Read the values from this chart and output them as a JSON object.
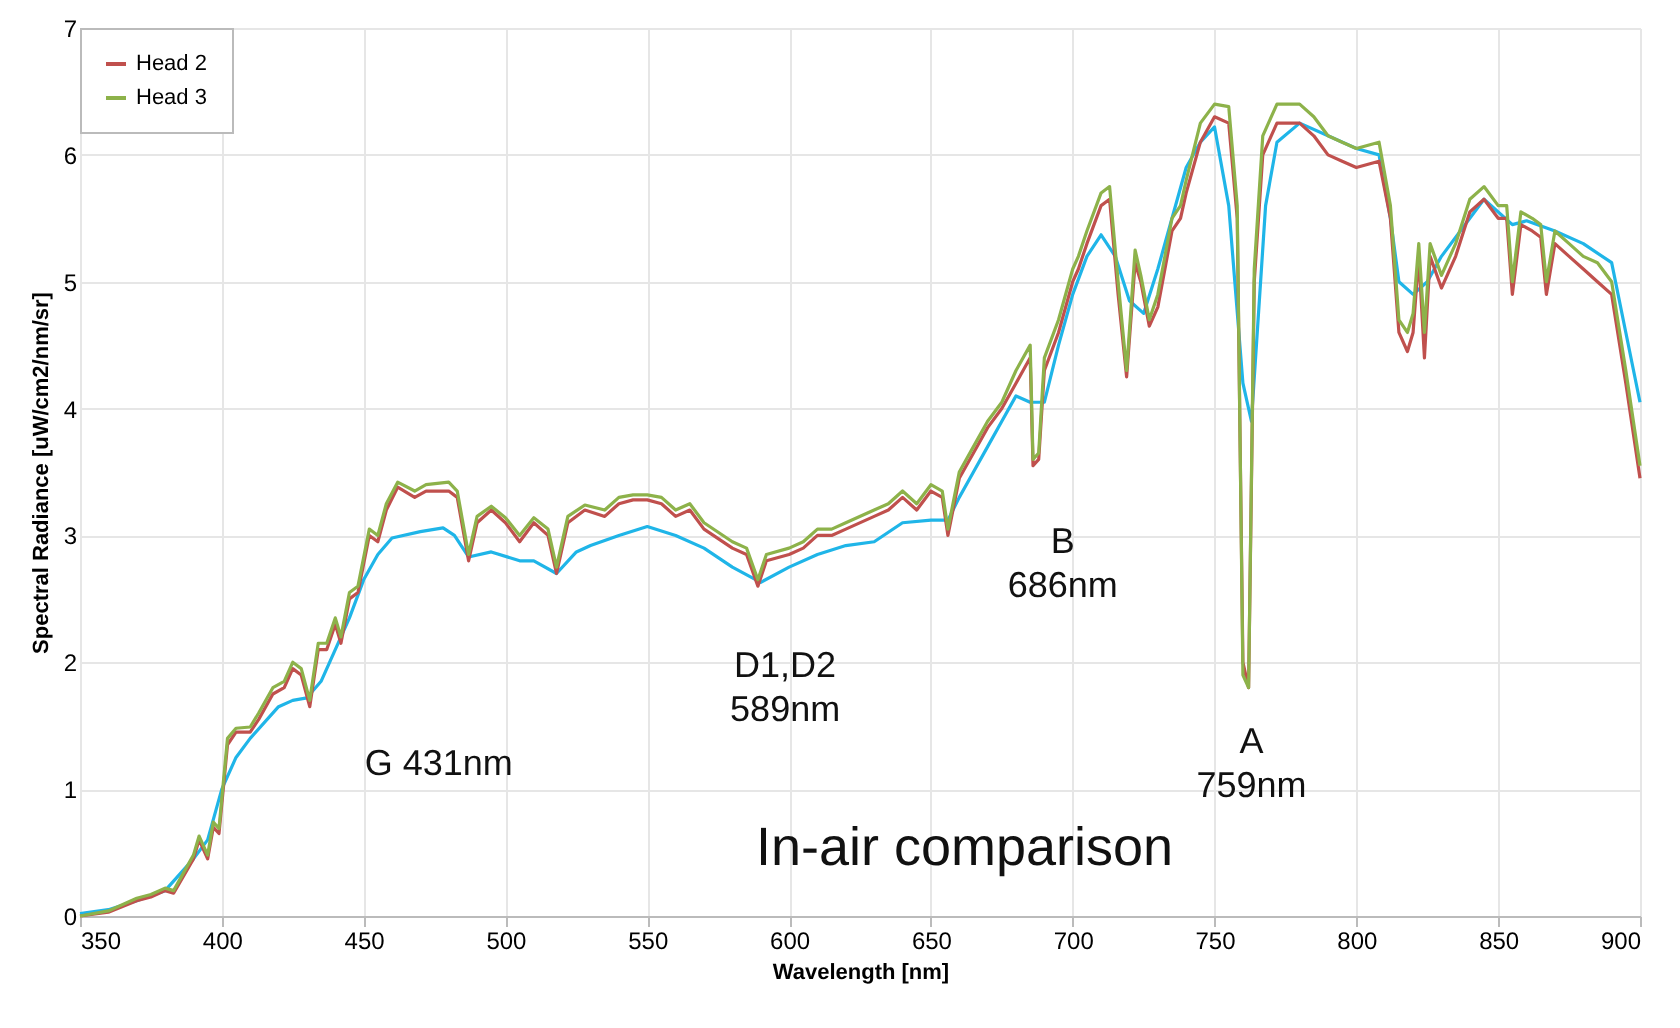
{
  "chart_data": {
    "type": "line",
    "xlabel": "Wavelength [nm]",
    "ylabel": "Spectral Radiance [uW/cm2/nm/sr]",
    "x": [
      350,
      360,
      370,
      375,
      380,
      383,
      390,
      392,
      395,
      397,
      399,
      402,
      405,
      410,
      413,
      418,
      422,
      425,
      428,
      431,
      434,
      437,
      440,
      442,
      445,
      448,
      452,
      455,
      458,
      462,
      468,
      472,
      480,
      483,
      487,
      490,
      495,
      500,
      505,
      510,
      515,
      518,
      522,
      528,
      535,
      540,
      545,
      550,
      555,
      560,
      565,
      570,
      580,
      585,
      589,
      592,
      600,
      605,
      610,
      615,
      620,
      630,
      635,
      640,
      645,
      650,
      654,
      656,
      660,
      665,
      670,
      675,
      680,
      685,
      686,
      688,
      690,
      695,
      700,
      702,
      705,
      710,
      713,
      716,
      719,
      722,
      724,
      727,
      730,
      735,
      738,
      740,
      745,
      750,
      755,
      758,
      760,
      762,
      764,
      767,
      772,
      780,
      785,
      790,
      795,
      800,
      808,
      812,
      815,
      818,
      820,
      822,
      824,
      826,
      830,
      835,
      840,
      845,
      850,
      853,
      855,
      858,
      862,
      865,
      867,
      870,
      875,
      880,
      885,
      890,
      895,
      900
    ],
    "series": [
      {
        "color": "#1fb5e8",
        "x": [
          350,
          360,
          370,
          380,
          390,
          395,
          400,
          405,
          410,
          420,
          425,
          430,
          435,
          440,
          445,
          450,
          455,
          460,
          470,
          478,
          482,
          487,
          495,
          505,
          510,
          518,
          525,
          530,
          540,
          550,
          560,
          570,
          580,
          590,
          600,
          610,
          620,
          630,
          640,
          650,
          656,
          660,
          665,
          670,
          675,
          680,
          685,
          690,
          695,
          700,
          705,
          710,
          715,
          720,
          725,
          730,
          735,
          740,
          745,
          750,
          755,
          760,
          763,
          768,
          772,
          780,
          790,
          800,
          808,
          812,
          815,
          820,
          825,
          830,
          840,
          845,
          850,
          855,
          860,
          870,
          880,
          890,
          895,
          900
        ],
        "values": [
          0.02,
          0.05,
          0.12,
          0.2,
          0.45,
          0.6,
          1.0,
          1.25,
          1.4,
          1.65,
          1.7,
          1.72,
          1.85,
          2.1,
          2.35,
          2.65,
          2.85,
          2.98,
          3.03,
          3.06,
          3.0,
          2.83,
          2.87,
          2.8,
          2.8,
          2.7,
          2.87,
          2.92,
          3.0,
          3.07,
          3.0,
          2.9,
          2.75,
          2.63,
          2.75,
          2.85,
          2.92,
          2.95,
          3.1,
          3.12,
          3.12,
          3.3,
          3.5,
          3.7,
          3.9,
          4.1,
          4.05,
          4.05,
          4.5,
          4.9,
          5.2,
          5.37,
          5.2,
          4.85,
          4.75,
          5.1,
          5.5,
          5.9,
          6.1,
          6.22,
          5.6,
          4.2,
          3.9,
          5.6,
          6.1,
          6.25,
          6.15,
          6.05,
          6.0,
          5.5,
          5.0,
          4.9,
          5.0,
          5.2,
          5.5,
          5.65,
          5.55,
          5.45,
          5.48,
          5.4,
          5.3,
          5.15,
          4.6,
          4.05
        ]
      },
      {
        "name": "Head 2",
        "color": "#c0504d",
        "values": [
          0.0,
          0.03,
          0.12,
          0.15,
          0.2,
          0.18,
          0.45,
          0.6,
          0.45,
          0.7,
          0.65,
          1.35,
          1.45,
          1.45,
          1.55,
          1.75,
          1.8,
          1.95,
          1.9,
          1.65,
          2.1,
          2.1,
          2.3,
          2.15,
          2.5,
          2.55,
          3.0,
          2.95,
          3.2,
          3.38,
          3.3,
          3.35,
          3.35,
          3.3,
          2.8,
          3.1,
          3.2,
          3.1,
          2.95,
          3.1,
          3.0,
          2.7,
          3.1,
          3.2,
          3.15,
          3.25,
          3.28,
          3.28,
          3.25,
          3.15,
          3.2,
          3.05,
          2.9,
          2.85,
          2.6,
          2.8,
          2.85,
          2.9,
          3.0,
          3.0,
          3.05,
          3.15,
          3.2,
          3.3,
          3.2,
          3.35,
          3.3,
          3.0,
          3.45,
          3.65,
          3.85,
          4.0,
          4.2,
          4.4,
          3.55,
          3.6,
          4.3,
          4.6,
          5.0,
          5.1,
          5.3,
          5.6,
          5.65,
          4.9,
          4.25,
          5.15,
          5.0,
          4.65,
          4.8,
          5.4,
          5.5,
          5.7,
          6.1,
          6.3,
          6.25,
          5.5,
          2.0,
          1.8,
          5.0,
          6.0,
          6.25,
          6.25,
          6.15,
          6.0,
          5.95,
          5.9,
          5.95,
          5.5,
          4.6,
          4.45,
          4.6,
          5.2,
          4.4,
          5.2,
          4.95,
          5.2,
          5.55,
          5.65,
          5.5,
          5.5,
          4.9,
          5.45,
          5.4,
          5.35,
          4.9,
          5.3,
          5.2,
          5.1,
          5.0,
          4.9,
          4.2,
          3.45
        ]
      },
      {
        "name": "Head 3",
        "color": "#8db24a",
        "values": [
          0.0,
          0.04,
          0.14,
          0.17,
          0.22,
          0.2,
          0.48,
          0.63,
          0.48,
          0.74,
          0.69,
          1.4,
          1.48,
          1.49,
          1.6,
          1.8,
          1.85,
          2.0,
          1.95,
          1.7,
          2.15,
          2.15,
          2.35,
          2.2,
          2.55,
          2.6,
          3.05,
          3.0,
          3.25,
          3.42,
          3.35,
          3.4,
          3.42,
          3.35,
          2.85,
          3.15,
          3.23,
          3.14,
          3.0,
          3.14,
          3.05,
          2.75,
          3.15,
          3.24,
          3.2,
          3.3,
          3.32,
          3.32,
          3.3,
          3.2,
          3.25,
          3.1,
          2.95,
          2.9,
          2.65,
          2.85,
          2.9,
          2.95,
          3.05,
          3.05,
          3.1,
          3.2,
          3.25,
          3.35,
          3.25,
          3.4,
          3.35,
          3.05,
          3.5,
          3.7,
          3.9,
          4.05,
          4.3,
          4.5,
          3.6,
          3.65,
          4.4,
          4.7,
          5.1,
          5.2,
          5.4,
          5.7,
          5.75,
          5.0,
          4.3,
          5.25,
          5.05,
          4.7,
          4.9,
          5.5,
          5.6,
          5.8,
          6.25,
          6.4,
          6.38,
          5.6,
          1.9,
          1.8,
          5.1,
          6.15,
          6.4,
          6.4,
          6.3,
          6.15,
          6.1,
          6.05,
          6.1,
          5.6,
          4.7,
          4.6,
          4.75,
          5.3,
          4.6,
          5.3,
          5.05,
          5.3,
          5.65,
          5.75,
          5.6,
          5.6,
          5.0,
          5.55,
          5.5,
          5.45,
          5.0,
          5.4,
          5.3,
          5.2,
          5.15,
          5.0,
          4.3,
          3.55
        ]
      }
    ],
    "xlim": [
      350,
      900
    ],
    "xticks": [
      350,
      400,
      450,
      500,
      550,
      600,
      650,
      700,
      750,
      800,
      850,
      900
    ],
    "ylim": [
      0,
      7
    ],
    "yticks": [
      0,
      1,
      2,
      3,
      4,
      5,
      6,
      7
    ],
    "grid": true,
    "legend": "top left",
    "marker": "none",
    "line_style": "solid",
    "annotations": [
      "G 431nm",
      "D1,D2\n589nm",
      "B\n686nm",
      "A\n759nm",
      "In-air comparison"
    ]
  }
}
